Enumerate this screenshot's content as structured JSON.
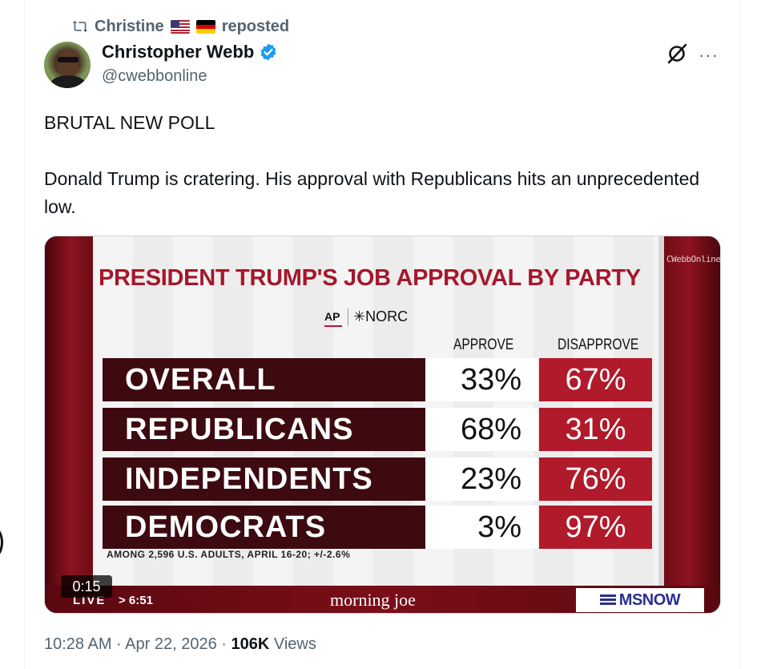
{
  "repost": {
    "user": "Christine",
    "flags": [
      "us-flag",
      "germany-flag"
    ],
    "label": "reposted"
  },
  "author": {
    "name": "Christopher Webb",
    "handle": "@cwebbonline",
    "verified": true
  },
  "tweet": {
    "line1": "BRUTAL NEW POLL",
    "line2": "Donald Trump is cratering. His approval with Republicans hits an unprecedented low."
  },
  "media": {
    "watermark": "CWebbOnline",
    "title": "PRESIDENT TRUMP'S JOB APPROVAL BY PARTY",
    "source_ap": "AP",
    "source_norc": "✳NORC",
    "col_approve": "APPROVE",
    "col_disapprove": "DISAPPROVE",
    "footnote": "AMONG 2,596 U.S. ADULTS, APRIL 16-20; +/-2.6%",
    "timer": "0:15",
    "live": "LIVE",
    "time": "> 6:51",
    "show": "morning joe",
    "network": "MSNOW"
  },
  "chart_data": {
    "type": "table",
    "title": "PRESIDENT TRUMP'S JOB APPROVAL BY PARTY",
    "columns": [
      "APPROVE",
      "DISAPPROVE"
    ],
    "rows": [
      {
        "label": "OVERALL",
        "approve": "33%",
        "disapprove": "67%"
      },
      {
        "label": "REPUBLICANS",
        "approve": "68%",
        "disapprove": "31%"
      },
      {
        "label": "INDEPENDENTS",
        "approve": "23%",
        "disapprove": "76%"
      },
      {
        "label": "DEMOCRATS",
        "approve": "3%",
        "disapprove": "97%"
      }
    ]
  },
  "meta": {
    "time": "10:28 AM · Apr 22, 2026 · ",
    "views_count": "106K",
    "views_label": " Views"
  },
  "colors": {
    "title_red": "#a5172b",
    "disapprove_red": "#b01a2a",
    "label_dark": "#3d0a10",
    "verified_blue": "#1d9bf0"
  }
}
